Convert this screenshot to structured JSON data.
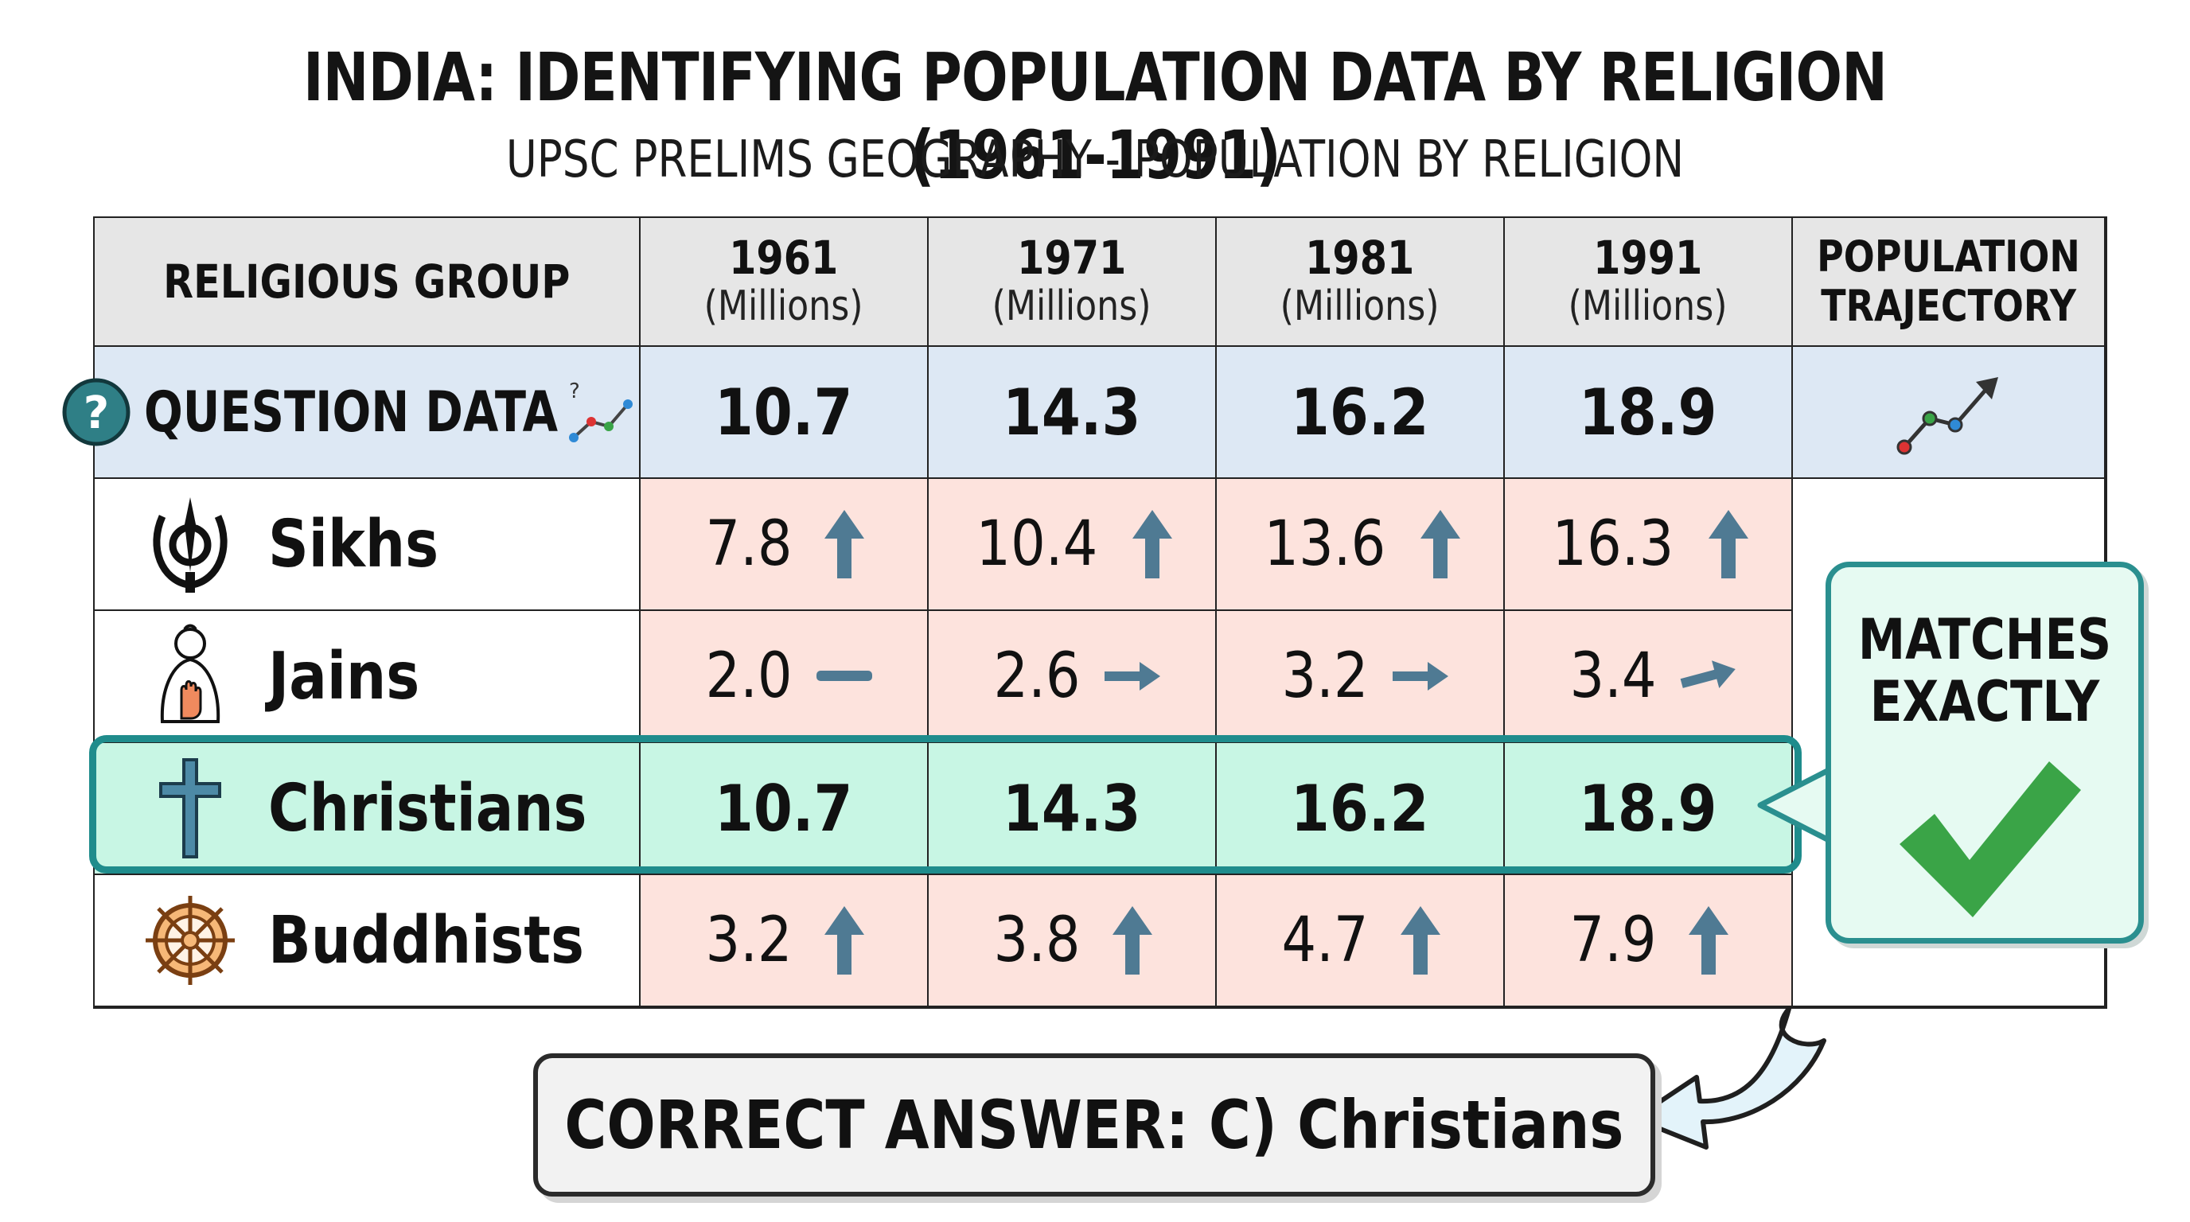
{
  "title": "INDIA: IDENTIFYING POPULATION DATA BY RELIGION (1961-1991)",
  "subtitle": "UPSC PRELIMS GEOGRAPHY - POPULATION BY RELIGION",
  "table": {
    "group_header": "RELIGIOUS GROUP",
    "years": [
      {
        "year": "1961",
        "unit": "(Millions)"
      },
      {
        "year": "1971",
        "unit": "(Millions)"
      },
      {
        "year": "1981",
        "unit": "(Millions)"
      },
      {
        "year": "1991",
        "unit": "(Millions)"
      }
    ],
    "trajectory_header_1": "POPULATION",
    "trajectory_header_2": "TRAJECTORY",
    "question": {
      "label": "QUESTION DATA",
      "icon": "question-icon",
      "values": [
        "10.7",
        "14.3",
        "16.2",
        "18.9"
      ]
    },
    "rows": [
      {
        "name": "Sikhs",
        "icon": "khanda-icon",
        "values": [
          "7.8",
          "10.4",
          "13.6",
          "16.3"
        ],
        "trend": [
          "up",
          "up",
          "up",
          "up"
        ]
      },
      {
        "name": "Jains",
        "icon": "jain-figure-icon",
        "values": [
          "2.0",
          "2.6",
          "3.2",
          "3.4"
        ],
        "trend": [
          "flat",
          "right",
          "right",
          "slight-up"
        ]
      },
      {
        "name": "Christians",
        "icon": "cross-icon",
        "values": [
          "10.7",
          "14.3",
          "16.2",
          "18.9"
        ],
        "highlight": true
      },
      {
        "name": "Buddhists",
        "icon": "dharma-wheel-icon",
        "values": [
          "3.2",
          "3.8",
          "4.7",
          "7.9"
        ],
        "trend": [
          "up",
          "up",
          "up",
          "up"
        ]
      }
    ]
  },
  "callout": {
    "line1": "MATCHES",
    "line2": "EXACTLY",
    "icon": "checkmark-icon"
  },
  "answer": "CORRECT ANSWER: C) Christians",
  "colors": {
    "question_row": "#dde8f4",
    "value_cells": "#fde3dd",
    "highlight_row": "#c8f6e4",
    "highlight_border": "#1f8c8c",
    "arrow": "#4f7a93",
    "check": "#3aa447"
  },
  "chart_data": {
    "type": "table",
    "title": "INDIA: IDENTIFYING POPULATION DATA BY RELIGION (1961-1991)",
    "categories": [
      "1961",
      "1971",
      "1981",
      "1991"
    ],
    "series": [
      {
        "name": "QUESTION DATA",
        "values": [
          10.7,
          14.3,
          16.2,
          18.9
        ]
      },
      {
        "name": "Sikhs",
        "values": [
          7.8,
          10.4,
          13.6,
          16.3
        ]
      },
      {
        "name": "Jains",
        "values": [
          2.0,
          2.6,
          3.2,
          3.4
        ]
      },
      {
        "name": "Christians",
        "values": [
          10.7,
          14.3,
          16.2,
          18.9
        ]
      },
      {
        "name": "Buddhists",
        "values": [
          3.2,
          3.8,
          4.7,
          7.9
        ]
      }
    ]
  }
}
